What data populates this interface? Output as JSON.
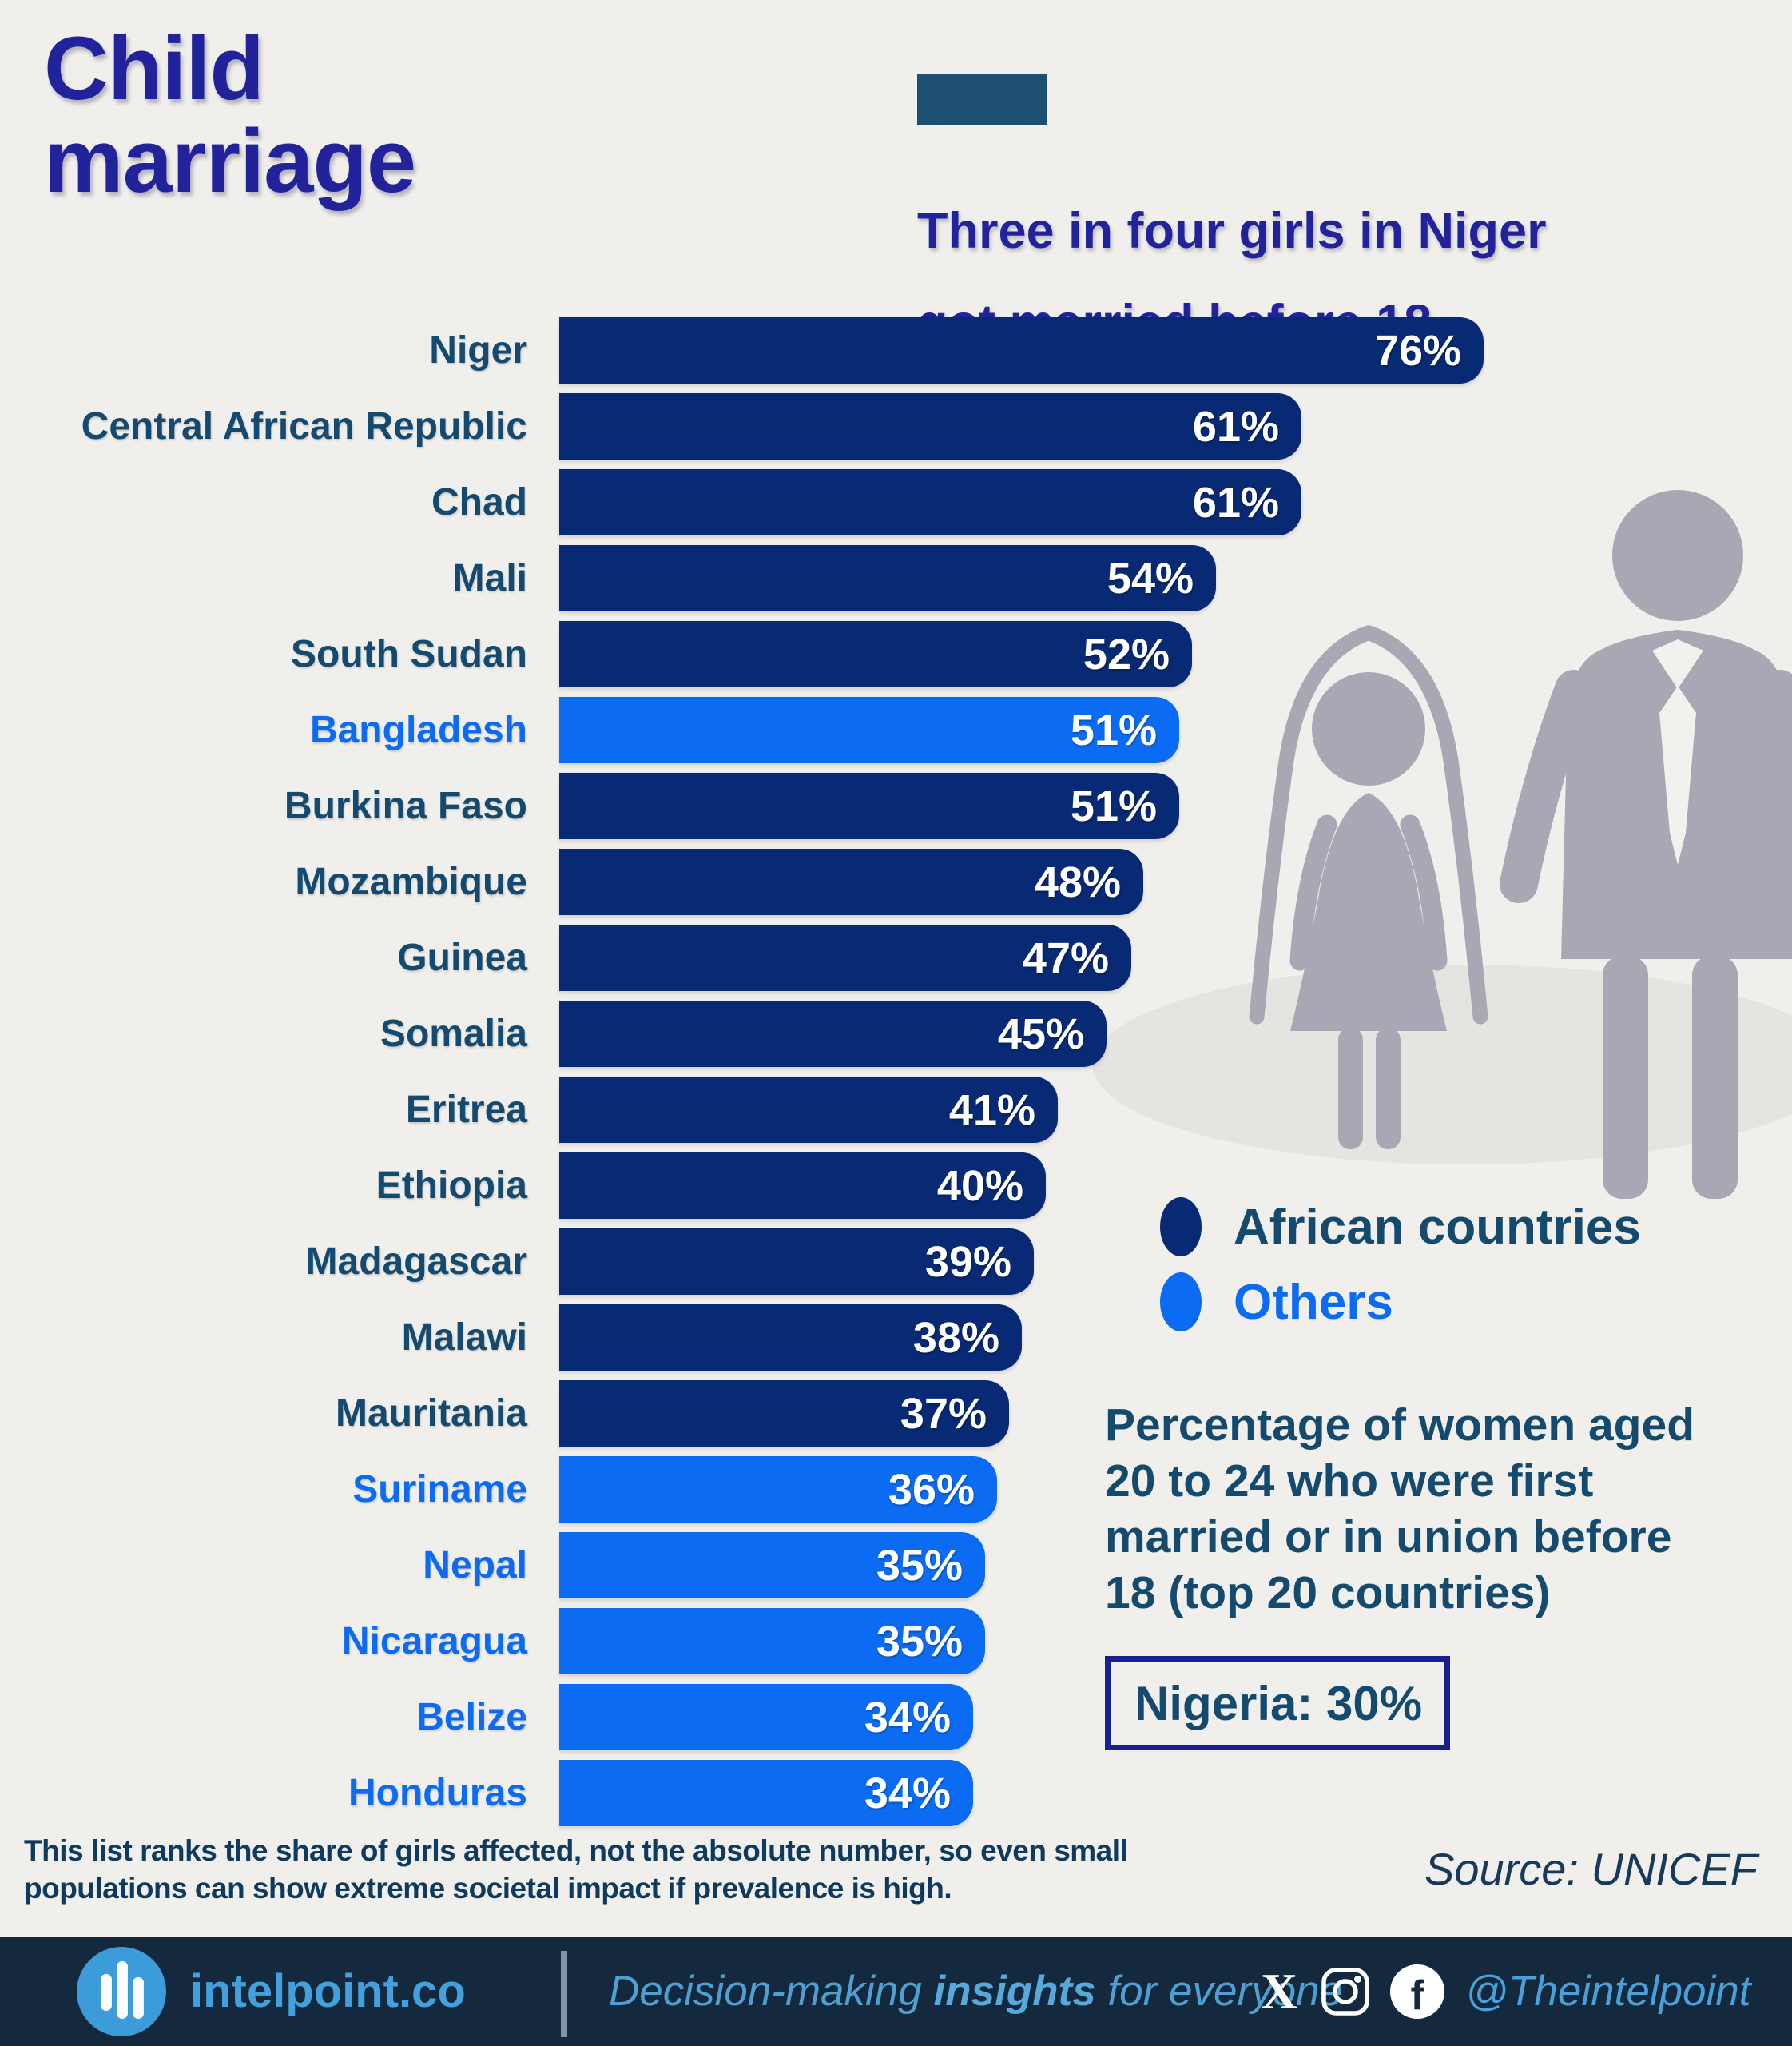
{
  "page": {
    "background": "#f0efeb"
  },
  "header": {
    "title_line1": "Child",
    "title_line2": "marriage",
    "accent_color": "#1d4f71",
    "subtitle_line1": "Three in four girls in Niger",
    "subtitle_line2": "got married before 18"
  },
  "chart_data": {
    "type": "bar",
    "orientation": "horizontal",
    "title": "Child marriage — top 20 countries",
    "xlabel": "Percentage of women aged 20 to 24 first married or in union before 18",
    "xlim": [
      0,
      76
    ],
    "value_suffix": "%",
    "grid": false,
    "legend_position": "right",
    "categories": [
      "Niger",
      "Central African Republic",
      "Chad",
      "Mali",
      "South Sudan",
      "Bangladesh",
      "Burkina Faso",
      "Mozambique",
      "Guinea",
      "Somalia",
      "Eritrea",
      "Ethiopia",
      "Madagascar",
      "Malawi",
      "Mauritania",
      "Suriname",
      "Nepal",
      "Nicaragua",
      "Belize",
      "Honduras"
    ],
    "values": [
      76,
      61,
      61,
      54,
      52,
      51,
      51,
      48,
      47,
      45,
      41,
      40,
      39,
      38,
      37,
      36,
      35,
      35,
      34,
      34
    ],
    "groups": [
      "african",
      "african",
      "african",
      "african",
      "african",
      "other",
      "african",
      "african",
      "african",
      "african",
      "african",
      "african",
      "african",
      "african",
      "african",
      "other",
      "other",
      "other",
      "other",
      "other"
    ],
    "bar_colors": {
      "african": "#082a74",
      "other": "#0b6cf3"
    },
    "label_colors": {
      "african": "#154a70",
      "other": "#0b6cf3"
    },
    "legend": [
      {
        "label": "African countries",
        "color": "#082a74",
        "text_color": "#134a6e"
      },
      {
        "label": "Others",
        "color": "#0b6cf3",
        "text_color": "#0b6cf3"
      }
    ]
  },
  "annotation": {
    "desc_lines": {
      "0": "Percentage of women aged",
      "1": "20 to 24 who were first",
      "2": "married or in union before",
      "3": "18 (top 20 countries)"
    },
    "nigeria_note": "Nigeria: 30%"
  },
  "footnote": {
    "line1": "This list ranks the share of girls affected, not the absolute number, so even small",
    "line2": "populations can show extreme societal impact if prevalence is high.",
    "source": "Source: UNICEF"
  },
  "footer": {
    "brand": "intelpoint.co",
    "tagline_pre": "Decision-making ",
    "tagline_bold": "insights",
    "tagline_post": " for everyone",
    "handle": "@Theintelpoint",
    "facebook_letter": "f",
    "x_letter": "X"
  },
  "illustration": {
    "name": "bride-and-groom-silhouette",
    "color": "#a8a7b4"
  }
}
